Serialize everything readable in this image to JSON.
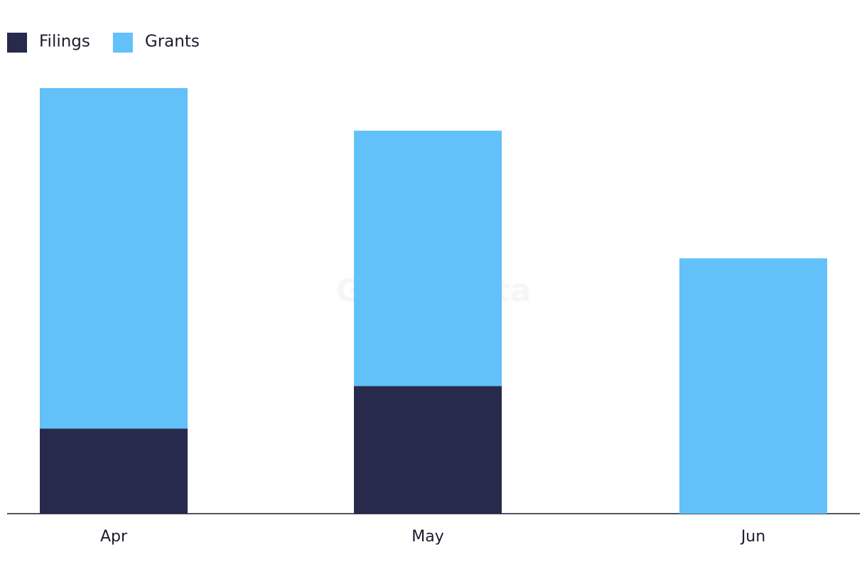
{
  "chart_data": {
    "type": "stacked-bar",
    "watermark": "GlobalData",
    "categories": [
      "Apr",
      "May",
      "Jun"
    ],
    "series": [
      {
        "name": "Filings",
        "color": "#272a4c",
        "values": [
          2,
          3,
          0
        ]
      },
      {
        "name": "Grants",
        "color": "#62c1f9",
        "values": [
          8,
          6,
          6
        ]
      }
    ],
    "ylim": [
      0,
      10
    ],
    "legend": "top-left"
  }
}
